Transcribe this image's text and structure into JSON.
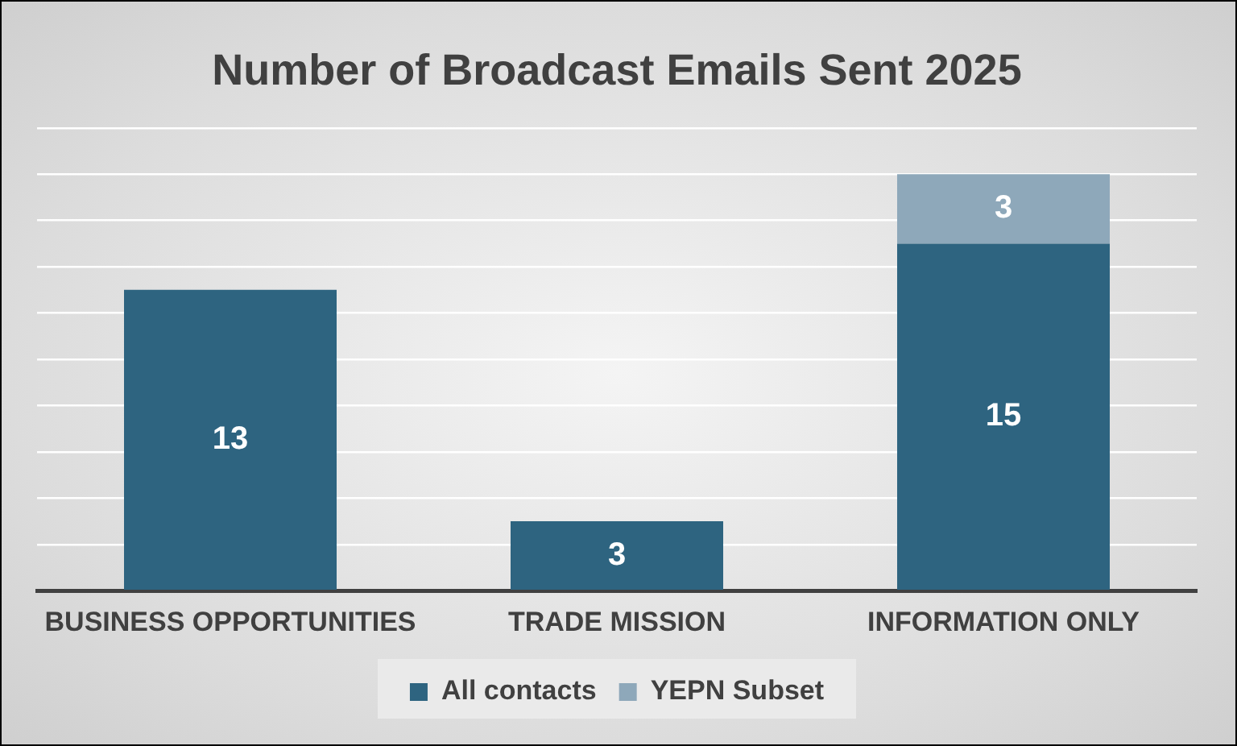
{
  "chart_data": {
    "type": "bar",
    "title": "Number of Broadcast Emails Sent 2025",
    "categories": [
      "BUSINESS OPPORTUNITIES",
      "TRADE MISSION",
      "INFORMATION ONLY"
    ],
    "series": [
      {
        "name": "All contacts",
        "color": "#2e6480",
        "values": [
          13,
          3,
          15
        ]
      },
      {
        "name": "YEPN Subset",
        "color": "#8ea8ba",
        "values": [
          null,
          null,
          3
        ]
      }
    ],
    "stacked": true,
    "data_labels": true,
    "ylim": [
      0,
      20
    ],
    "yticks": [
      {
        "value": 0,
        "label": null
      },
      {
        "value": 2,
        "label": null
      },
      {
        "value": 4,
        "label": null
      },
      {
        "value": 6,
        "label": null
      },
      {
        "value": 8,
        "label": null
      },
      {
        "value": 10,
        "label": null
      },
      {
        "value": 12,
        "label": null
      },
      {
        "value": 14,
        "label": null
      },
      {
        "value": 16,
        "label": null
      },
      {
        "value": 18,
        "label": null
      },
      {
        "value": 20,
        "label": null
      }
    ],
    "grid": "y",
    "legend": "bottom",
    "tick_labels": "x"
  }
}
